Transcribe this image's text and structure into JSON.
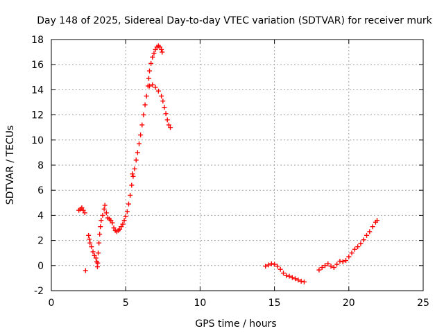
{
  "chart_data": {
    "type": "scatter",
    "title": "Day 148 of 2025, Sidereal Day-to-day VTEC variation (SDTVAR) for receiver murk",
    "xlabel": "GPS time / hours",
    "ylabel": "SDTVAR / TECUs",
    "xlim": [
      0,
      25
    ],
    "ylim": [
      -2,
      18
    ],
    "xticks": [
      0,
      5,
      10,
      15,
      20,
      25
    ],
    "yticks": [
      -2,
      0,
      2,
      4,
      6,
      8,
      10,
      12,
      14,
      16,
      18
    ],
    "grid": true,
    "marker": "plus",
    "color": "#ff0000",
    "series": [
      {
        "points": [
          [
            1.85,
            4.4
          ],
          [
            1.95,
            4.5
          ],
          [
            2.05,
            4.6
          ],
          [
            2.15,
            4.4
          ],
          [
            2.25,
            4.2
          ],
          [
            2.3,
            -0.4
          ],
          [
            2.5,
            2.4
          ],
          [
            2.55,
            2.1
          ],
          [
            2.6,
            1.8
          ],
          [
            2.7,
            1.5
          ],
          [
            2.8,
            1.1
          ],
          [
            2.9,
            0.8
          ],
          [
            3.0,
            0.6
          ],
          [
            3.05,
            0.3
          ],
          [
            3.1,
            -0.1
          ],
          [
            3.12,
            0.2
          ],
          [
            3.15,
            1.0
          ],
          [
            3.2,
            1.8
          ],
          [
            3.25,
            2.5
          ],
          [
            3.3,
            3.1
          ],
          [
            3.35,
            3.6
          ],
          [
            3.45,
            4.0
          ],
          [
            3.55,
            4.5
          ],
          [
            3.6,
            4.8
          ],
          [
            3.7,
            4.2
          ],
          [
            3.8,
            3.8
          ],
          [
            3.9,
            3.7
          ],
          [
            4.0,
            3.6
          ],
          [
            4.1,
            3.4
          ],
          [
            4.2,
            3.0
          ],
          [
            4.3,
            2.8
          ],
          [
            4.4,
            2.7
          ],
          [
            4.5,
            2.8
          ],
          [
            4.6,
            2.9
          ],
          [
            4.7,
            3.1
          ],
          [
            4.8,
            3.3
          ],
          [
            4.9,
            3.6
          ],
          [
            5.0,
            3.9
          ],
          [
            5.1,
            4.3
          ],
          [
            5.2,
            4.9
          ],
          [
            5.3,
            5.6
          ],
          [
            5.4,
            6.4
          ],
          [
            5.45,
            7.3
          ],
          [
            5.5,
            7.1
          ],
          [
            5.6,
            7.7
          ],
          [
            5.7,
            8.4
          ],
          [
            5.8,
            9.0
          ],
          [
            5.9,
            9.7
          ],
          [
            6.0,
            10.4
          ],
          [
            6.1,
            11.2
          ],
          [
            6.2,
            12.0
          ],
          [
            6.3,
            12.8
          ],
          [
            6.4,
            13.5
          ],
          [
            6.5,
            14.3
          ],
          [
            6.55,
            14.9
          ],
          [
            6.6,
            15.5
          ],
          [
            6.7,
            16.1
          ],
          [
            6.8,
            16.6
          ],
          [
            6.9,
            16.9
          ],
          [
            7.0,
            17.2
          ],
          [
            7.1,
            17.4
          ],
          [
            7.2,
            17.5
          ],
          [
            7.3,
            17.4
          ],
          [
            7.4,
            17.2
          ],
          [
            7.45,
            17.0
          ],
          [
            6.6,
            14.3
          ],
          [
            6.8,
            14.4
          ],
          [
            7.0,
            14.2
          ],
          [
            7.2,
            13.9
          ],
          [
            7.4,
            13.5
          ],
          [
            7.5,
            13.1
          ],
          [
            7.6,
            12.6
          ],
          [
            7.7,
            12.1
          ],
          [
            7.8,
            11.6
          ],
          [
            7.9,
            11.2
          ],
          [
            8.0,
            11.0
          ],
          [
            14.4,
            -0.05
          ],
          [
            14.6,
            0.05
          ],
          [
            14.8,
            0.15
          ],
          [
            15.0,
            0.1
          ],
          [
            15.2,
            -0.05
          ],
          [
            15.4,
            -0.3
          ],
          [
            15.6,
            -0.6
          ],
          [
            15.8,
            -0.8
          ],
          [
            16.0,
            -0.85
          ],
          [
            16.2,
            -0.95
          ],
          [
            16.4,
            -1.05
          ],
          [
            16.6,
            -1.15
          ],
          [
            16.8,
            -1.25
          ],
          [
            17.0,
            -1.3
          ],
          [
            18.0,
            -0.35
          ],
          [
            18.2,
            -0.15
          ],
          [
            18.4,
            0.0
          ],
          [
            18.6,
            0.15
          ],
          [
            18.8,
            -0.05
          ],
          [
            19.0,
            -0.15
          ],
          [
            19.2,
            0.1
          ],
          [
            19.4,
            0.35
          ],
          [
            19.6,
            0.3
          ],
          [
            19.8,
            0.4
          ],
          [
            20.0,
            0.7
          ],
          [
            20.2,
            1.0
          ],
          [
            20.4,
            1.3
          ],
          [
            20.6,
            1.5
          ],
          [
            20.8,
            1.75
          ],
          [
            21.0,
            2.05
          ],
          [
            21.2,
            2.4
          ],
          [
            21.4,
            2.7
          ],
          [
            21.6,
            3.1
          ],
          [
            21.8,
            3.45
          ],
          [
            21.9,
            3.6
          ]
        ]
      }
    ]
  }
}
